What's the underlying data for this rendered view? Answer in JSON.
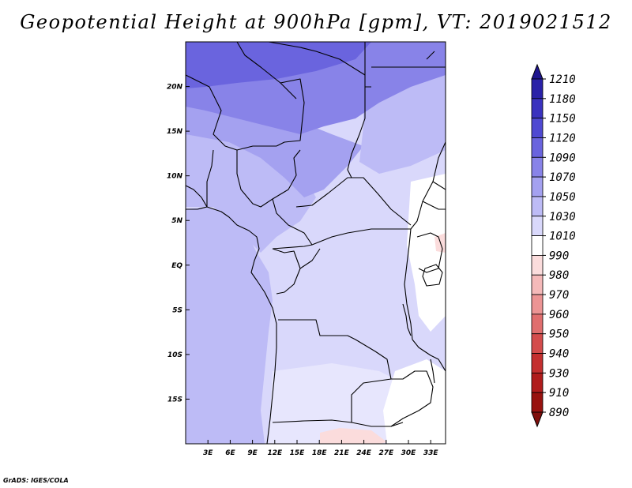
{
  "title": "Geopotential Height at 900hPa [gpm], VT: 2019021512",
  "credit": "GrADS: IGES/COLA",
  "map": {
    "lon_range": [
      0,
      35
    ],
    "lat_range": [
      -20,
      25
    ],
    "x_ticks": [
      {
        "lon": 3,
        "label": "3E"
      },
      {
        "lon": 6,
        "label": "6E"
      },
      {
        "lon": 9,
        "label": "9E"
      },
      {
        "lon": 12,
        "label": "12E"
      },
      {
        "lon": 15,
        "label": "15E"
      },
      {
        "lon": 18,
        "label": "18E"
      },
      {
        "lon": 21,
        "label": "21E"
      },
      {
        "lon": 24,
        "label": "24E"
      },
      {
        "lon": 27,
        "label": "27E"
      },
      {
        "lon": 30,
        "label": "30E"
      },
      {
        "lon": 33,
        "label": "33E"
      }
    ],
    "y_ticks": [
      {
        "lat": 20,
        "label": "20N"
      },
      {
        "lat": 15,
        "label": "15N"
      },
      {
        "lat": 10,
        "label": "10N"
      },
      {
        "lat": 5,
        "label": "5N"
      },
      {
        "lat": 0,
        "label": "EQ"
      },
      {
        "lat": -5,
        "label": "5S"
      },
      {
        "lat": -10,
        "label": "10S"
      },
      {
        "lat": -15,
        "label": "15S"
      }
    ]
  },
  "colorbar": {
    "labels": [
      "1210",
      "1180",
      "1150",
      "1120",
      "1090",
      "1070",
      "1050",
      "1030",
      "1010",
      "990",
      "980",
      "970",
      "960",
      "950",
      "940",
      "930",
      "910",
      "890"
    ],
    "colors": [
      "#1f168f",
      "#2a21a8",
      "#3a32bf",
      "#4f49d2",
      "#6a64de",
      "#8883e8",
      "#a4a1f0",
      "#bdbbf6",
      "#d9d8fb",
      "#ffffff",
      "#fbdcdc",
      "#f5b9b9",
      "#ec9494",
      "#e06e6e",
      "#d44c4c",
      "#c42f2f",
      "#b01c1c",
      "#98120f",
      "#7f0f0c"
    ]
  }
}
